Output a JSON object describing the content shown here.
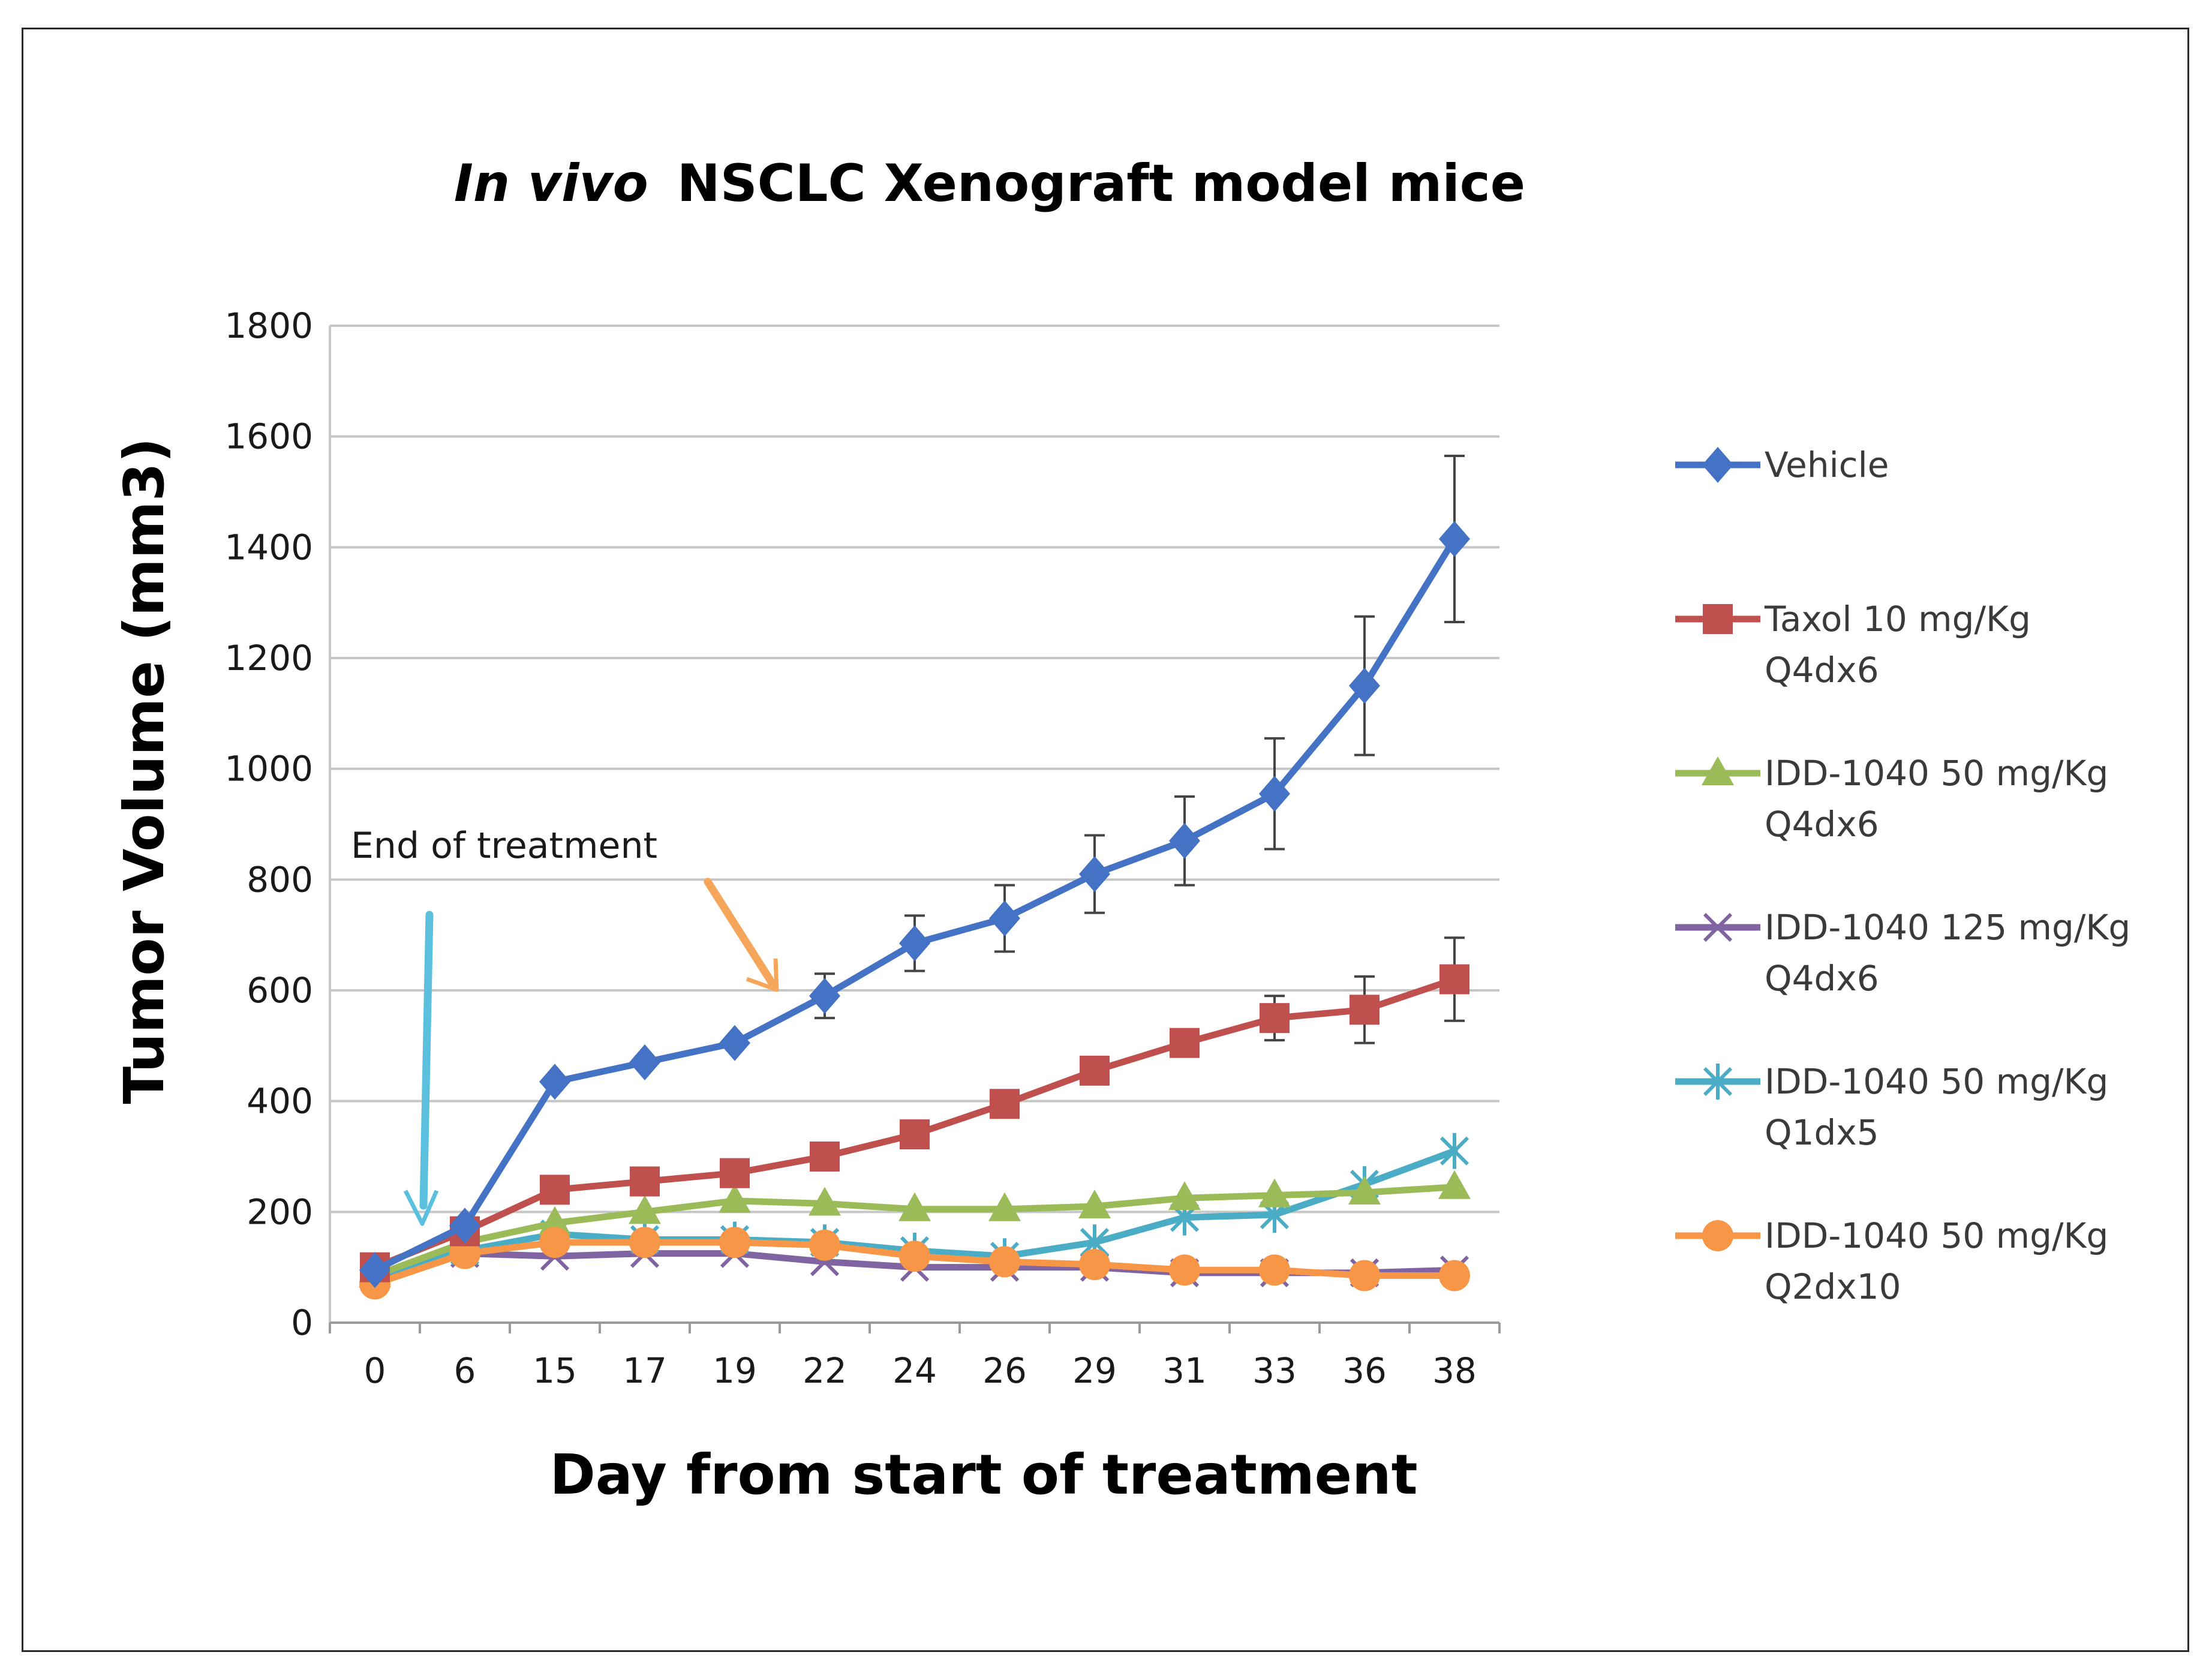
{
  "chart_data": {
    "type": "line",
    "title_italic": "In vivo",
    "title_rest": "NSCLC  Xenograft model  mice",
    "xlabel": "Day from start of treatment",
    "ylabel": "Tumor Volume (mm3)",
    "ylim": [
      0,
      1800
    ],
    "yticks": [
      0,
      200,
      400,
      600,
      800,
      1000,
      1200,
      1400,
      1600,
      1800
    ],
    "grid": true,
    "legend_position": "right",
    "categories": [
      "0",
      "6",
      "15",
      "17",
      "19",
      "22",
      "24",
      "26",
      "29",
      "31",
      "33",
      "36",
      "38"
    ],
    "annotation": "End of  treatment",
    "series": [
      {
        "name": "Vehicle",
        "name_line2": "",
        "color": "#4472C4",
        "marker": "diamond",
        "values": [
          95,
          175,
          435,
          470,
          505,
          590,
          685,
          730,
          810,
          870,
          955,
          1150,
          1415
        ],
        "errors": [
          0,
          0,
          0,
          0,
          0,
          40,
          50,
          60,
          70,
          80,
          100,
          125,
          150
        ]
      },
      {
        "name": "Taxol 10 mg/Kg",
        "name_line2": "Q4dx6",
        "color": "#C0504D",
        "marker": "square",
        "values": [
          100,
          165,
          240,
          255,
          270,
          300,
          340,
          395,
          455,
          505,
          550,
          565,
          620
        ],
        "errors": [
          0,
          0,
          0,
          0,
          0,
          0,
          0,
          0,
          0,
          20,
          40,
          60,
          75
        ]
      },
      {
        "name": "IDD-1040 50 mg/Kg",
        "name_line2": "Q4dx6",
        "color": "#9BBB59",
        "marker": "triangle",
        "values": [
          85,
          145,
          180,
          200,
          220,
          215,
          205,
          205,
          210,
          225,
          230,
          235,
          245
        ],
        "errors": [
          0,
          0,
          0,
          0,
          0,
          0,
          0,
          0,
          0,
          0,
          0,
          0,
          0
        ]
      },
      {
        "name": "IDD-1040 125 mg/Kg",
        "name_line2": "Q4dx6",
        "color": "#8064A2",
        "marker": "x",
        "values": [
          80,
          125,
          120,
          125,
          125,
          110,
          100,
          100,
          100,
          90,
          90,
          90,
          95
        ],
        "errors": [
          0,
          0,
          0,
          0,
          0,
          0,
          0,
          0,
          0,
          0,
          0,
          0,
          0
        ]
      },
      {
        "name": "IDD-1040 50 mg/Kg",
        "name_line2": "Q1dx5",
        "color": "#4BACC6",
        "marker": "star",
        "values": [
          85,
          130,
          160,
          150,
          150,
          145,
          130,
          120,
          145,
          190,
          195,
          250,
          310
        ],
        "errors": [
          0,
          0,
          0,
          0,
          0,
          0,
          0,
          0,
          0,
          0,
          0,
          0,
          0
        ]
      },
      {
        "name": "IDD-1040 50 mg/Kg",
        "name_line2": "Q2dx10",
        "color": "#F79646",
        "marker": "circle",
        "values": [
          70,
          125,
          145,
          145,
          145,
          140,
          120,
          110,
          105,
          95,
          95,
          85,
          85
        ],
        "errors": [
          0,
          0,
          0,
          0,
          0,
          0,
          0,
          0,
          0,
          0,
          0,
          0,
          0
        ]
      }
    ]
  }
}
